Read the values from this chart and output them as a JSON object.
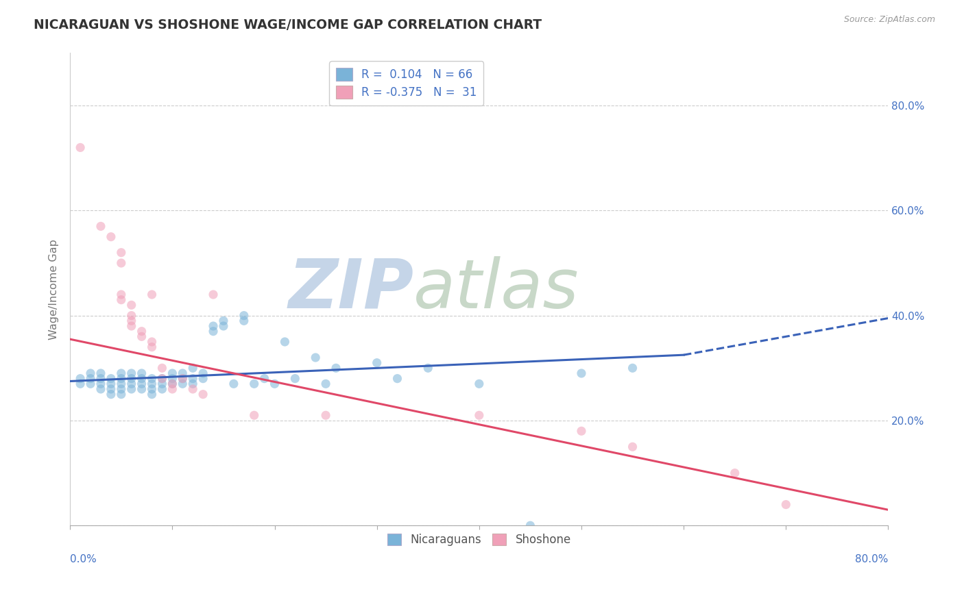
{
  "title": "NICARAGUAN VS SHOSHONE WAGE/INCOME GAP CORRELATION CHART",
  "source": "Source: ZipAtlas.com",
  "ylabel": "Wage/Income Gap",
  "legend_entries": [
    {
      "label": "R =  0.104   N = 66",
      "color": "#aec6e8"
    },
    {
      "label": "R = -0.375   N =  31",
      "color": "#f4b8c8"
    }
  ],
  "blue_scatter": [
    [
      0.01,
      0.27
    ],
    [
      0.01,
      0.28
    ],
    [
      0.02,
      0.27
    ],
    [
      0.02,
      0.28
    ],
    [
      0.02,
      0.29
    ],
    [
      0.03,
      0.26
    ],
    [
      0.03,
      0.27
    ],
    [
      0.03,
      0.28
    ],
    [
      0.03,
      0.29
    ],
    [
      0.04,
      0.25
    ],
    [
      0.04,
      0.26
    ],
    [
      0.04,
      0.27
    ],
    [
      0.04,
      0.28
    ],
    [
      0.05,
      0.25
    ],
    [
      0.05,
      0.26
    ],
    [
      0.05,
      0.27
    ],
    [
      0.05,
      0.28
    ],
    [
      0.05,
      0.29
    ],
    [
      0.06,
      0.26
    ],
    [
      0.06,
      0.27
    ],
    [
      0.06,
      0.28
    ],
    [
      0.06,
      0.29
    ],
    [
      0.07,
      0.26
    ],
    [
      0.07,
      0.27
    ],
    [
      0.07,
      0.28
    ],
    [
      0.07,
      0.29
    ],
    [
      0.08,
      0.25
    ],
    [
      0.08,
      0.26
    ],
    [
      0.08,
      0.27
    ],
    [
      0.08,
      0.28
    ],
    [
      0.09,
      0.26
    ],
    [
      0.09,
      0.27
    ],
    [
      0.09,
      0.28
    ],
    [
      0.1,
      0.27
    ],
    [
      0.1,
      0.28
    ],
    [
      0.1,
      0.29
    ],
    [
      0.11,
      0.27
    ],
    [
      0.11,
      0.28
    ],
    [
      0.11,
      0.29
    ],
    [
      0.12,
      0.27
    ],
    [
      0.12,
      0.28
    ],
    [
      0.12,
      0.3
    ],
    [
      0.13,
      0.28
    ],
    [
      0.13,
      0.29
    ],
    [
      0.14,
      0.37
    ],
    [
      0.14,
      0.38
    ],
    [
      0.15,
      0.38
    ],
    [
      0.15,
      0.39
    ],
    [
      0.16,
      0.27
    ],
    [
      0.17,
      0.39
    ],
    [
      0.17,
      0.4
    ],
    [
      0.18,
      0.27
    ],
    [
      0.19,
      0.28
    ],
    [
      0.2,
      0.27
    ],
    [
      0.21,
      0.35
    ],
    [
      0.22,
      0.28
    ],
    [
      0.24,
      0.32
    ],
    [
      0.25,
      0.27
    ],
    [
      0.26,
      0.3
    ],
    [
      0.3,
      0.31
    ],
    [
      0.32,
      0.28
    ],
    [
      0.35,
      0.3
    ],
    [
      0.4,
      0.27
    ],
    [
      0.45,
      0.0
    ],
    [
      0.5,
      0.29
    ],
    [
      0.55,
      0.3
    ]
  ],
  "pink_scatter": [
    [
      0.01,
      0.72
    ],
    [
      0.03,
      0.57
    ],
    [
      0.04,
      0.55
    ],
    [
      0.05,
      0.52
    ],
    [
      0.05,
      0.5
    ],
    [
      0.05,
      0.44
    ],
    [
      0.05,
      0.43
    ],
    [
      0.06,
      0.42
    ],
    [
      0.06,
      0.4
    ],
    [
      0.06,
      0.39
    ],
    [
      0.06,
      0.38
    ],
    [
      0.07,
      0.37
    ],
    [
      0.07,
      0.36
    ],
    [
      0.08,
      0.35
    ],
    [
      0.08,
      0.34
    ],
    [
      0.08,
      0.44
    ],
    [
      0.09,
      0.3
    ],
    [
      0.09,
      0.28
    ],
    [
      0.1,
      0.27
    ],
    [
      0.1,
      0.26
    ],
    [
      0.11,
      0.28
    ],
    [
      0.12,
      0.26
    ],
    [
      0.13,
      0.25
    ],
    [
      0.14,
      0.44
    ],
    [
      0.18,
      0.21
    ],
    [
      0.25,
      0.21
    ],
    [
      0.4,
      0.21
    ],
    [
      0.5,
      0.18
    ],
    [
      0.55,
      0.15
    ],
    [
      0.65,
      0.1
    ],
    [
      0.7,
      0.04
    ]
  ],
  "blue_line_solid": [
    [
      0.0,
      0.275
    ],
    [
      0.6,
      0.325
    ]
  ],
  "blue_line_dashed": [
    [
      0.6,
      0.325
    ],
    [
      0.8,
      0.395
    ]
  ],
  "pink_line": [
    [
      0.0,
      0.355
    ],
    [
      0.8,
      0.03
    ]
  ],
  "watermark_zip": "ZIP",
  "watermark_atlas": "atlas",
  "watermark_color_zip": "#c5d5e8",
  "watermark_color_atlas": "#c8d8c8",
  "bg_color": "#ffffff",
  "scatter_alpha": 0.55,
  "scatter_size": 90,
  "blue_color": "#7ab3d8",
  "pink_color": "#f0a0b8",
  "blue_line_color": "#3a62b8",
  "pink_line_color": "#e04868",
  "grid_color": "#cccccc",
  "title_color": "#333333",
  "axis_label_color": "#777777",
  "right_axis_color": "#4472c4",
  "xlim": [
    0.0,
    0.8
  ],
  "ylim": [
    0.0,
    0.9
  ],
  "yticks": [
    0.0,
    0.2,
    0.4,
    0.6,
    0.8
  ],
  "yticklabels_right": [
    "",
    "20.0%",
    "40.0%",
    "60.0%",
    "80.0%"
  ]
}
